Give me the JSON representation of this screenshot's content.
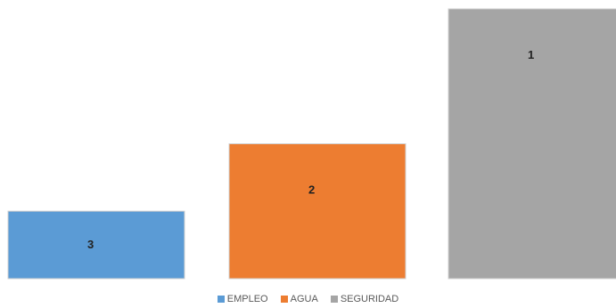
{
  "chart_data": {
    "type": "bar",
    "series": [
      {
        "name": "EMPLEO",
        "value": 1,
        "label": "3",
        "color": "#5b9bd5"
      },
      {
        "name": "AGUA",
        "value": 2,
        "label": "2",
        "color": "#ed7d31"
      },
      {
        "name": "SEGURIDAD",
        "value": 4,
        "label": "1",
        "color": "#a5a5a5"
      }
    ],
    "title": "",
    "xlabel": "",
    "ylabel": "",
    "ylim": [
      0,
      4
    ],
    "grid": false,
    "legend_position": "bottom"
  }
}
